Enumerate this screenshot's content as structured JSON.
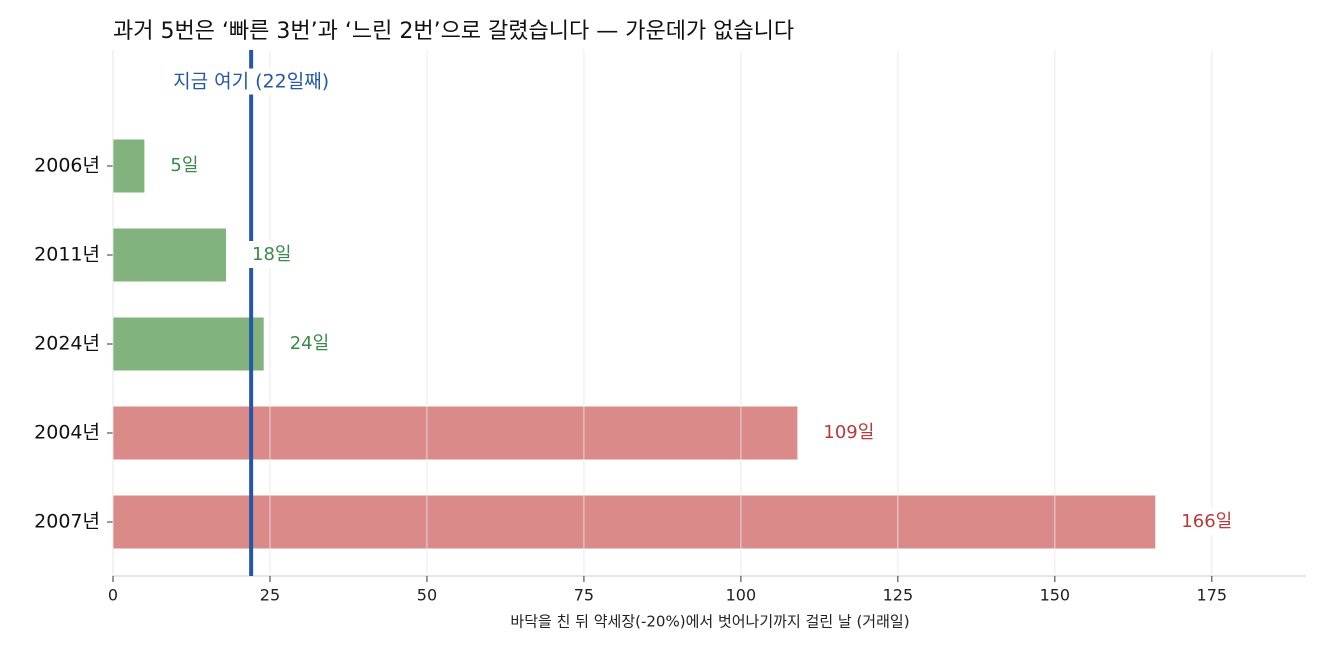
{
  "chart_data": {
    "type": "bar",
    "orientation": "horizontal",
    "title": "과거 5번은 ‘빠른 3번’과 ‘느린 2번’으로 갈렸습니다 — 가운데가 없습니다",
    "xlabel": "바닥을 친 뒤 약세장(-20%)에서 벗어나기까지 걸린 날 (거래일)",
    "categories": [
      "2006년",
      "2011년",
      "2024년",
      "2004년",
      "2007년"
    ],
    "values": [
      5,
      18,
      24,
      109,
      166
    ],
    "value_labels": [
      "5일",
      "18일",
      "24일",
      "109일",
      "166일"
    ],
    "colors": [
      "#82b27e",
      "#82b27e",
      "#82b27e",
      "#d98a89",
      "#d98a89"
    ],
    "label_colors": [
      "#3a8a4a",
      "#3a8a4a",
      "#3a8a4a",
      "#b83a3a",
      "#b83a3a"
    ],
    "xlim": [
      0,
      190
    ],
    "xticks": [
      0,
      25,
      50,
      75,
      100,
      125,
      150,
      175
    ],
    "grid": true,
    "reference_line": {
      "value": 22,
      "label": "지금 여기 (22일째)",
      "color": "#2458a6"
    }
  }
}
